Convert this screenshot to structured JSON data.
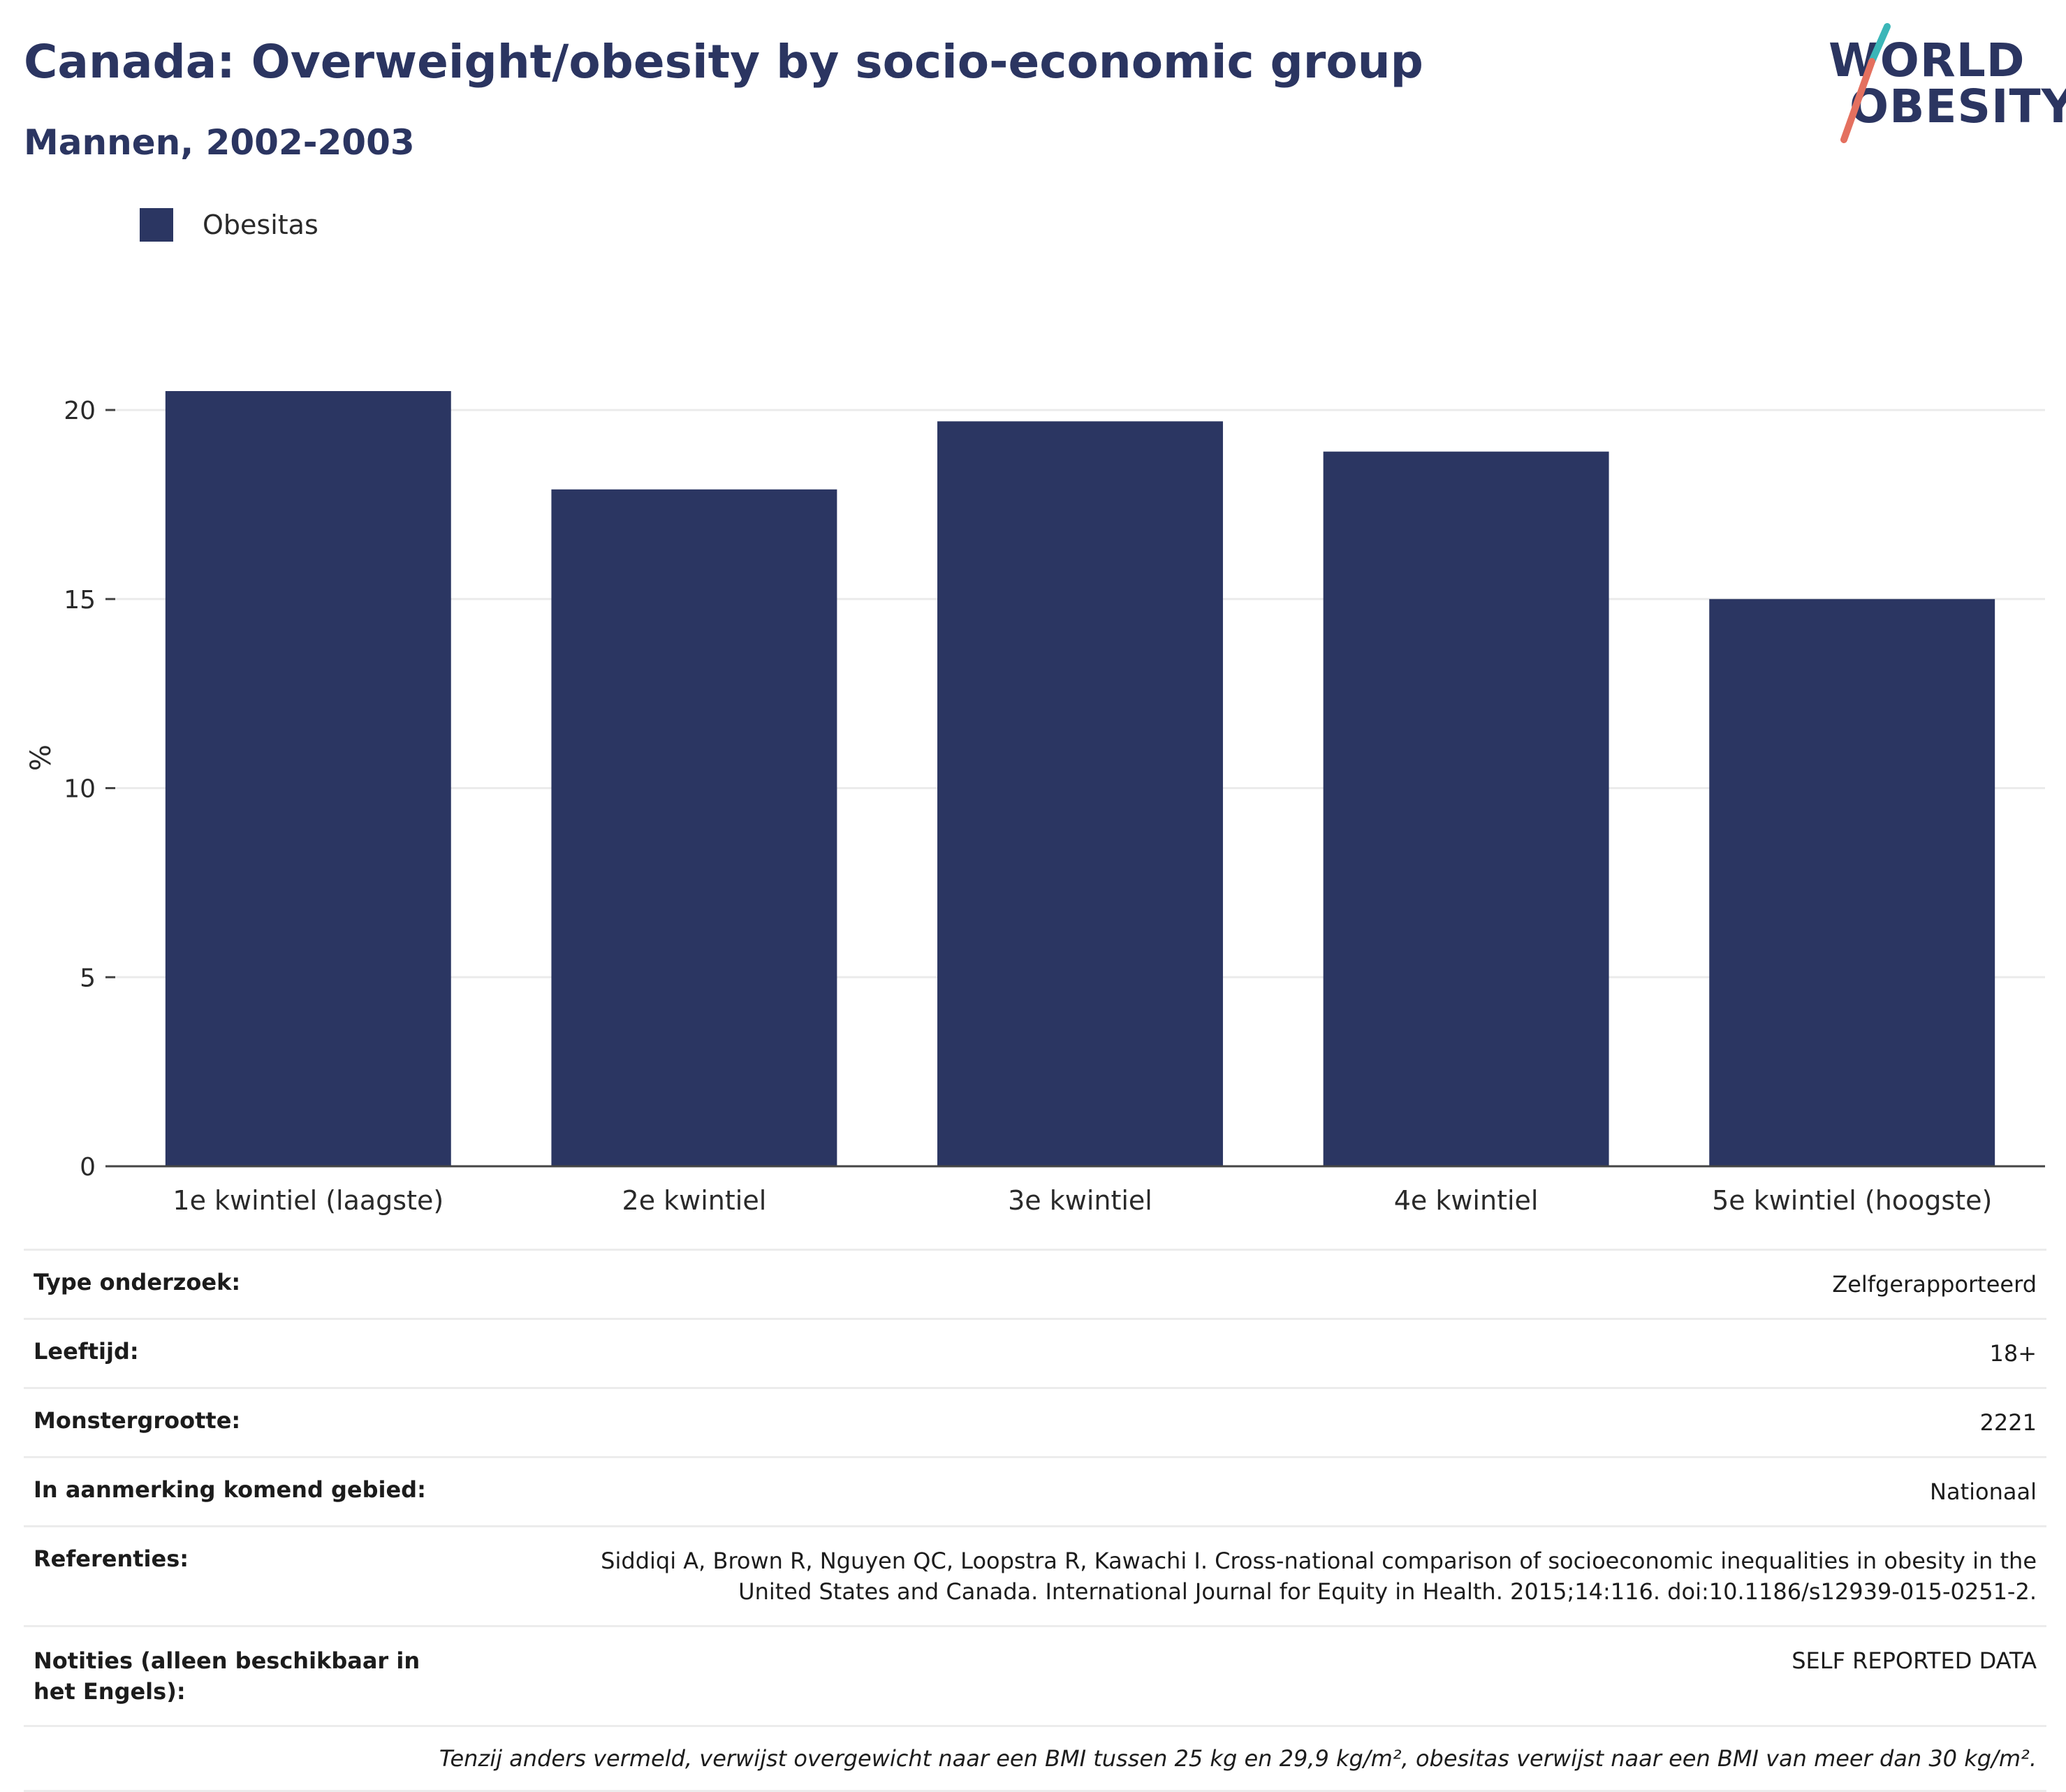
{
  "header": {
    "title": "Canada: Overweight/obesity by socio-economic group",
    "subtitle": "Mannen, 2002-2003"
  },
  "logo": {
    "line1": "WORLD",
    "line2": "OBESITY",
    "icon": "world-obesity-logo"
  },
  "legend": {
    "items": [
      {
        "label": "Obesitas",
        "color": "#2b3662"
      }
    ]
  },
  "chart_data": {
    "type": "bar",
    "categories": [
      "1e kwintiel (laagste)",
      "2e kwintiel",
      "3e kwintiel",
      "4e kwintiel",
      "5e kwintiel (hoogste)"
    ],
    "series": [
      {
        "name": "Obesitas",
        "values": [
          20.5,
          17.9,
          19.7,
          18.9,
          15.0
        ],
        "color": "#2b3662"
      }
    ],
    "ylabel": "%",
    "ylim": [
      0,
      20.5
    ],
    "yticks": [
      0,
      5,
      10,
      15,
      20
    ],
    "grid": true,
    "legend_position": "top-left"
  },
  "info": {
    "rows": [
      {
        "key": "Type onderzoek:",
        "value": "Zelfgerapporteerd"
      },
      {
        "key": "Leeftijd:",
        "value": "18+"
      },
      {
        "key": "Monstergrootte:",
        "value": "2221"
      },
      {
        "key": "In aanmerking komend gebied:",
        "value": "Nationaal"
      },
      {
        "key": "Referenties:",
        "value": "Siddiqi A, Brown R, Nguyen QC, Loopstra R, Kawachi I. Cross-national comparison of socioeconomic inequalities in obesity in the United States and Canada. International Journal for Equity in Health. 2015;14:116. doi:10.1186/s12939-015-0251-2."
      },
      {
        "key": "Notities (alleen beschikbaar in het Engels):",
        "value": "SELF REPORTED DATA"
      }
    ],
    "footnote": "Tenzij anders vermeld, verwijst overgewicht naar een BMI tussen 25 kg en 29,9 kg/m², obesitas verwijst naar een BMI van meer dan 30 kg/m²."
  }
}
